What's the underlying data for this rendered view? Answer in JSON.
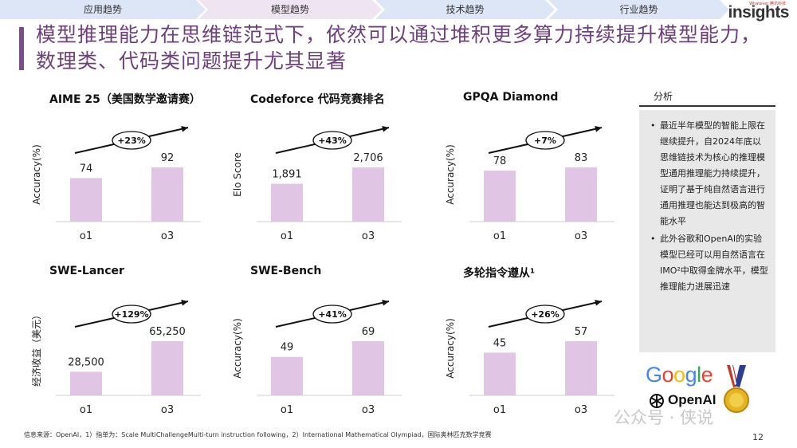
{
  "nav": {
    "tabs": [
      {
        "label": "应用趋势",
        "active": false
      },
      {
        "label": "模型趋势",
        "active": true
      },
      {
        "label": "技术趋势",
        "active": false
      },
      {
        "label": "行业趋势",
        "active": false
      }
    ],
    "brand": "insights",
    "brand_sub": "Whatever 腾讯科技"
  },
  "title": "模型推理能力在思维链范式下，依然可以通过堆积更多算力持续提升模型能力，数理类、代码类问题提升尤其显著",
  "colors": {
    "accent": "#7b4e87",
    "bar": "#e0c6e4",
    "nav_active": "#eee4f2",
    "nav_inactive": "#dde6f6",
    "panel_bg": "#e8e8e8"
  },
  "chart_data": [
    {
      "type": "bar",
      "title": "AIME 25（美国数学邀请赛）",
      "ylabel": "Accuracy(%)",
      "categories": [
        "o1",
        "o3"
      ],
      "values": [
        74,
        92
      ],
      "labels": [
        "74",
        "92"
      ],
      "change": "+23%"
    },
    {
      "type": "bar",
      "title": "Codeforce 代码竞赛排名",
      "ylabel": "Elo Score",
      "categories": [
        "o1",
        "o3"
      ],
      "values": [
        1891,
        2706
      ],
      "labels": [
        "1,891",
        "2,706"
      ],
      "change": "+43%"
    },
    {
      "type": "bar",
      "title": "GPQA Diamond",
      "ylabel": "Accuracy(%)",
      "categories": [
        "o1",
        "o3"
      ],
      "values": [
        78,
        83
      ],
      "labels": [
        "78",
        "83"
      ],
      "change": "+7%"
    },
    {
      "type": "bar",
      "title": "SWE-Lancer",
      "ylabel": "经济收益（美元）",
      "categories": [
        "o1",
        "o3"
      ],
      "values": [
        28500,
        65250
      ],
      "labels": [
        "28,500",
        "65,250"
      ],
      "change": "+129%"
    },
    {
      "type": "bar",
      "title": "SWE-Bench",
      "ylabel": "Accuracy(%)",
      "categories": [
        "o1",
        "o3"
      ],
      "values": [
        49,
        69
      ],
      "labels": [
        "49",
        "69"
      ],
      "change": "+41%"
    },
    {
      "type": "bar",
      "title": "多轮指令遵从¹",
      "ylabel": "Accuracy(%)",
      "categories": [
        "o1",
        "o3"
      ],
      "values": [
        45,
        57
      ],
      "labels": [
        "45",
        "57"
      ],
      "change": "+26%"
    }
  ],
  "panel": {
    "header": "分析",
    "bullets": [
      "最近半年模型的智能上限在继续提升，自2024年底以思维链技术为核心的推理模型通用推理能力持续提升，证明了基于纯自然语言进行通用推理也能达到极高的智能水平",
      "此外谷歌和OpenAI的实验模型已经可以用自然语言在IMO²中取得金牌水平，模型推理能力进展迅速"
    ]
  },
  "logos": {
    "google": "Google",
    "openai": "OpenAI"
  },
  "source": "信息来源：OpenAI，1）指单为：Scale MultiChallengeMulti-turn instruction following，2）International Mathematical Olympiad，国际奥林匹克数学竞赛",
  "watermark": "公众号 · 侠说",
  "page_number": "12"
}
